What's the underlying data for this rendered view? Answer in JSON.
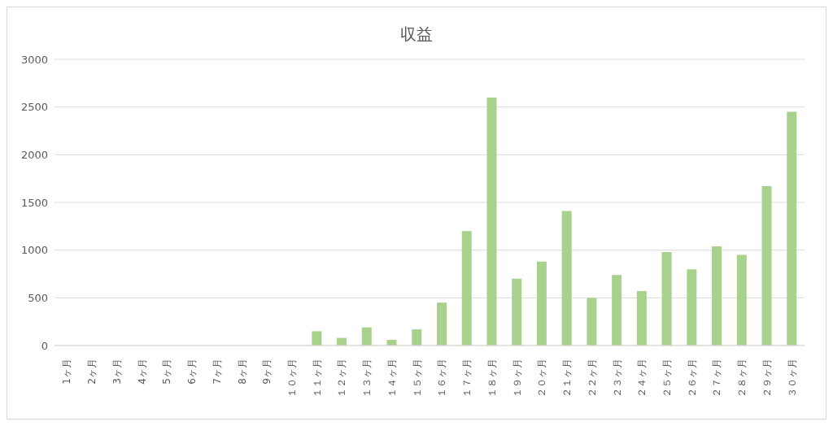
{
  "chart_data": {
    "type": "bar",
    "title": "収益",
    "categories": [
      "1ヶ月",
      "2ヶ月",
      "3ヶ月",
      "4ヶ月",
      "5ヶ月",
      "6ヶ月",
      "7ヶ月",
      "8ヶ月",
      "9ヶ月",
      "１０ヶ月",
      "１１ヶ月",
      "１２ヶ月",
      "１３ヶ月",
      "１４ヶ月",
      "１５ヶ月",
      "１６ヶ月",
      "１７ヶ月",
      "１８ヶ月",
      "１９ヶ月",
      "２０ヶ月",
      "２１ヶ月",
      "２２ヶ月",
      "２３ヶ月",
      "２４ヶ月",
      "２５ヶ月",
      "２６ヶ月",
      "２７ヶ月",
      "２８ヶ月",
      "２９ヶ月",
      "３０ヶ月"
    ],
    "values": [
      0,
      0,
      0,
      0,
      0,
      0,
      0,
      0,
      0,
      0,
      150,
      80,
      190,
      60,
      170,
      450,
      1200,
      2600,
      700,
      880,
      1410,
      500,
      740,
      570,
      980,
      800,
      1040,
      950,
      1670,
      2450
    ],
    "color": "#a9d18e",
    "ylim": [
      0,
      3000
    ],
    "yticks": [
      0,
      500,
      1000,
      1500,
      2000,
      2500,
      3000
    ],
    "grid": "y"
  }
}
